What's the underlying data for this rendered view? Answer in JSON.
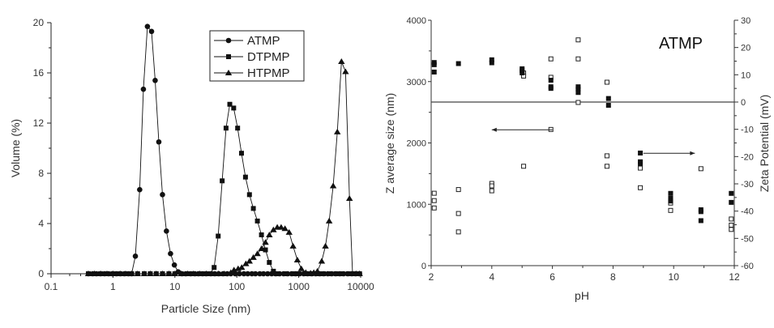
{
  "chart_data": [
    {
      "type": "line",
      "title": "",
      "xlabel": "Particle Size (nm)",
      "ylabel": "Volume (%)",
      "xscale": "log",
      "xlim": [
        0.1,
        10000
      ],
      "ylim": [
        0,
        20
      ],
      "xticks": [
        "0.1",
        "1",
        "10",
        "100",
        "1000",
        "10000"
      ],
      "yticks": [
        "0",
        "4",
        "8",
        "12",
        "16",
        "20"
      ],
      "legend_position": "top-center",
      "series": [
        {
          "name": "ATMP",
          "marker": "circle",
          "points": [
            [
              0.4,
              0
            ],
            [
              0.47,
              0
            ],
            [
              0.54,
              0
            ],
            [
              0.63,
              0
            ],
            [
              0.73,
              0
            ],
            [
              0.85,
              0
            ],
            [
              0.98,
              0
            ],
            [
              1.14,
              0
            ],
            [
              1.32,
              0
            ],
            [
              1.53,
              0
            ],
            [
              1.78,
              0
            ],
            [
              2.0,
              0
            ],
            [
              2.3,
              1.4
            ],
            [
              2.7,
              6.7
            ],
            [
              3.1,
              14.7
            ],
            [
              3.6,
              19.7
            ],
            [
              4.2,
              19.3
            ],
            [
              4.8,
              15.4
            ],
            [
              5.5,
              10.5
            ],
            [
              6.3,
              6.3
            ],
            [
              7.3,
              3.4
            ],
            [
              8.5,
              1.6
            ],
            [
              9.8,
              0.7
            ],
            [
              11.3,
              0.15
            ],
            [
              13,
              0
            ],
            [
              15,
              0
            ],
            [
              18,
              0
            ],
            [
              21,
              0
            ],
            [
              24,
              0
            ],
            [
              28,
              0
            ],
            [
              32,
              0
            ],
            [
              38,
              0
            ],
            [
              44,
              0
            ],
            [
              51,
              0
            ],
            [
              60,
              0
            ],
            [
              70,
              0
            ],
            [
              80,
              0
            ],
            [
              95,
              0
            ],
            [
              110,
              0
            ],
            [
              130,
              0
            ],
            [
              150,
              0
            ],
            [
              175,
              0
            ],
            [
              200,
              0
            ],
            [
              235,
              0
            ],
            [
              270,
              0
            ],
            [
              315,
              0
            ],
            [
              365,
              0
            ],
            [
              425,
              0
            ],
            [
              490,
              0
            ],
            [
              570,
              0
            ],
            [
              660,
              0
            ],
            [
              770,
              0
            ],
            [
              890,
              0
            ],
            [
              1030,
              0
            ],
            [
              1200,
              0
            ],
            [
              1400,
              0
            ],
            [
              1620,
              0
            ],
            [
              1880,
              0
            ],
            [
              2180,
              0
            ],
            [
              2530,
              0
            ],
            [
              2940,
              0
            ],
            [
              3400,
              0
            ],
            [
              3950,
              0
            ],
            [
              4600,
              0
            ],
            [
              5300,
              0
            ],
            [
              6200,
              0
            ],
            [
              7200,
              0
            ],
            [
              8300,
              0
            ],
            [
              9600,
              0
            ]
          ]
        },
        {
          "name": "DTPMP",
          "marker": "square",
          "points": [
            [
              0.4,
              0
            ],
            [
              0.5,
              0
            ],
            [
              0.63,
              0
            ],
            [
              0.8,
              0
            ],
            [
              1.0,
              0
            ],
            [
              1.3,
              0
            ],
            [
              1.6,
              0
            ],
            [
              2.0,
              0
            ],
            [
              2.5,
              0
            ],
            [
              3.2,
              0
            ],
            [
              4.0,
              0
            ],
            [
              5.0,
              0
            ],
            [
              6.3,
              0
            ],
            [
              8.0,
              0
            ],
            [
              10,
              0
            ],
            [
              12.6,
              0
            ],
            [
              16,
              0
            ],
            [
              20,
              0
            ],
            [
              25,
              0
            ],
            [
              32,
              0
            ],
            [
              37,
              0
            ],
            [
              43,
              0.5
            ],
            [
              50,
              3.0
            ],
            [
              58,
              7.4
            ],
            [
              67,
              11.6
            ],
            [
              77,
              13.5
            ],
            [
              89,
              13.2
            ],
            [
              103,
              11.6
            ],
            [
              119,
              9.6
            ],
            [
              138,
              7.7
            ],
            [
              160,
              6.3
            ],
            [
              185,
              5.2
            ],
            [
              215,
              4.2
            ],
            [
              250,
              3.1
            ],
            [
              290,
              1.9
            ],
            [
              335,
              0.9
            ],
            [
              390,
              0.2
            ],
            [
              450,
              0
            ],
            [
              600,
              0
            ],
            [
              800,
              0
            ],
            [
              1000,
              0
            ],
            [
              1300,
              0
            ],
            [
              1600,
              0
            ],
            [
              2000,
              0
            ],
            [
              2500,
              0
            ],
            [
              3200,
              0
            ],
            [
              4000,
              0
            ],
            [
              5000,
              0
            ],
            [
              6300,
              0
            ],
            [
              8000,
              0
            ],
            [
              9600,
              0
            ]
          ]
        },
        {
          "name": "HTPMP",
          "marker": "triangle",
          "points": [
            [
              0.4,
              0
            ],
            [
              0.5,
              0
            ],
            [
              0.63,
              0
            ],
            [
              0.8,
              0
            ],
            [
              1.0,
              0
            ],
            [
              1.3,
              0
            ],
            [
              1.6,
              0
            ],
            [
              2.0,
              0
            ],
            [
              2.5,
              0
            ],
            [
              3.2,
              0
            ],
            [
              4.0,
              0
            ],
            [
              5.0,
              0
            ],
            [
              6.3,
              0
            ],
            [
              8.0,
              0
            ],
            [
              10,
              0
            ],
            [
              12.6,
              0
            ],
            [
              16,
              0
            ],
            [
              20,
              0
            ],
            [
              25,
              0
            ],
            [
              32,
              0
            ],
            [
              40,
              0
            ],
            [
              50,
              0
            ],
            [
              63,
              0
            ],
            [
              80,
              0.1
            ],
            [
              90,
              0.3
            ],
            [
              105,
              0.4
            ],
            [
              120,
              0.5
            ],
            [
              140,
              0.8
            ],
            [
              160,
              1.0
            ],
            [
              185,
              1.3
            ],
            [
              215,
              1.6
            ],
            [
              250,
              2.0
            ],
            [
              290,
              2.5
            ],
            [
              335,
              3.1
            ],
            [
              390,
              3.5
            ],
            [
              450,
              3.7
            ],
            [
              520,
              3.7
            ],
            [
              600,
              3.6
            ],
            [
              700,
              3.3
            ],
            [
              810,
              2.2
            ],
            [
              950,
              1.1
            ],
            [
              1100,
              0.4
            ],
            [
              1300,
              0.1
            ],
            [
              1550,
              0.05
            ],
            [
              1750,
              0.1
            ],
            [
              2000,
              0.2
            ],
            [
              2350,
              1.0
            ],
            [
              2700,
              2.2
            ],
            [
              3100,
              4.2
            ],
            [
              3600,
              7.0
            ],
            [
              4200,
              11.3
            ],
            [
              4900,
              16.9
            ],
            [
              5700,
              16.1
            ],
            [
              6600,
              6.0
            ],
            [
              7400,
              0
            ],
            [
              8500,
              0
            ],
            [
              9600,
              0
            ]
          ]
        }
      ]
    },
    {
      "type": "scatter",
      "title": "ATMP",
      "xlabel": "pH",
      "ylabel": "Z average size (nm)",
      "y2label": "Zeta Potential (mV)",
      "xlim": [
        2,
        12
      ],
      "ylim": [
        0,
        4000
      ],
      "y2lim": [
        -60,
        30
      ],
      "xticks": [
        "2",
        "4",
        "6",
        "8",
        "10",
        "12"
      ],
      "yticks": [
        "0",
        "1000",
        "2000",
        "3000",
        "4000"
      ],
      "y2ticks": [
        "30",
        "20",
        "10",
        "0",
        "-10",
        "-20",
        "-30",
        "-40",
        "-50",
        "-60"
      ],
      "series": [
        {
          "name": "Z average size",
          "axis": "left",
          "marker": "open-square",
          "points": [
            [
              2.1,
              1180
            ],
            [
              2.1,
              1060
            ],
            [
              2.1,
              940
            ],
            [
              2.9,
              1240
            ],
            [
              2.9,
              850
            ],
            [
              2.9,
              550
            ],
            [
              4.0,
              1340
            ],
            [
              4.0,
              1300
            ],
            [
              4.0,
              1220
            ],
            [
              5.05,
              3140
            ],
            [
              5.05,
              3090
            ],
            [
              5.05,
              1620
            ],
            [
              5.95,
              3370
            ],
            [
              5.95,
              3070
            ],
            [
              5.95,
              2220
            ],
            [
              6.85,
              3680
            ],
            [
              6.85,
              3370
            ],
            [
              6.85,
              2660
            ],
            [
              7.8,
              2990
            ],
            [
              7.8,
              1790
            ],
            [
              7.8,
              1620
            ],
            [
              8.9,
              1590
            ],
            [
              8.9,
              1270
            ],
            [
              9.9,
              1020
            ],
            [
              9.9,
              900
            ],
            [
              10.9,
              1580
            ],
            [
              11.9,
              760
            ],
            [
              11.9,
              660
            ],
            [
              11.9,
              590
            ]
          ]
        },
        {
          "name": "Zeta Potential",
          "axis": "right",
          "marker": "filled-square",
          "points": [
            [
              2.1,
              14.5
            ],
            [
              2.1,
              13.7
            ],
            [
              2.1,
              11
            ],
            [
              2.9,
              14.1
            ],
            [
              4.0,
              15.5
            ],
            [
              4.0,
              14.4
            ],
            [
              5.0,
              12.2
            ],
            [
              5.0,
              11.5
            ],
            [
              5.0,
              10.7
            ],
            [
              5.95,
              8.0
            ],
            [
              5.95,
              5.6
            ],
            [
              5.95,
              5.0
            ],
            [
              6.85,
              5.6
            ],
            [
              6.85,
              4.8
            ],
            [
              6.85,
              3.5
            ],
            [
              7.85,
              1.3
            ],
            [
              7.85,
              -1.2
            ],
            [
              8.9,
              -18.7
            ],
            [
              8.9,
              -21.9
            ],
            [
              8.9,
              -22.6
            ],
            [
              9.9,
              -33.5
            ],
            [
              9.9,
              -35.3
            ],
            [
              9.9,
              -36.3
            ],
            [
              10.9,
              -39.5
            ],
            [
              10.9,
              -40.2
            ],
            [
              10.9,
              -43.5
            ],
            [
              11.9,
              -33.5
            ],
            [
              11.9,
              -36.8
            ]
          ]
        }
      ],
      "reference_line_mV": 0,
      "arrows": [
        {
          "points_to": "left-axis",
          "from_pH": 6,
          "to_pH": 4,
          "at_nm": 2215
        },
        {
          "points_to": "right-axis",
          "from_pH": 9,
          "to_pH": 10.7,
          "at_mV": -18.8
        }
      ]
    }
  ]
}
